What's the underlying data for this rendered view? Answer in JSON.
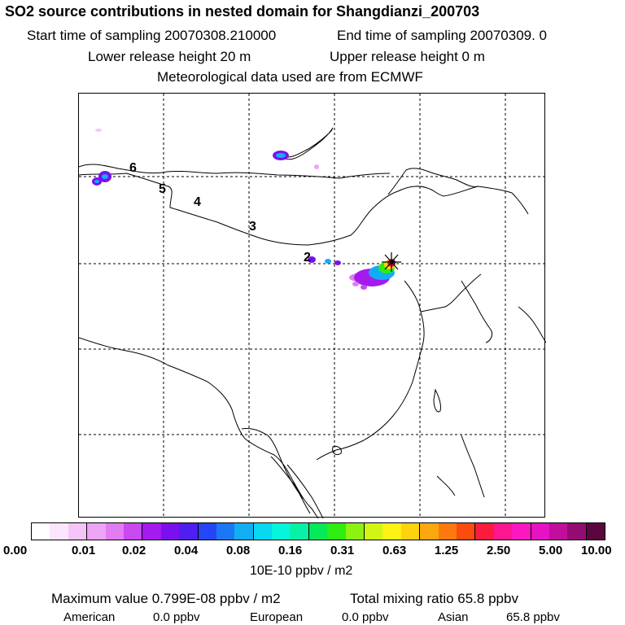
{
  "title": "SO2 source contributions in nested domain for Shangdianzi_200703",
  "line2_start": "Start time of sampling 20070308.210000",
  "line2_end": "End time of sampling 20070309.    0",
  "line3_lower": "Lower release height   20 m",
  "line3_upper": "Upper release height    0 m",
  "line4": "Meteorological data used are from ECMWF",
  "map": {
    "track_labels": [
      "6",
      "5",
      "4",
      "3",
      "2"
    ]
  },
  "colorbar": {
    "colors": [
      "#ffffff",
      "#fde6fd",
      "#f5c5f8",
      "#eea4f6",
      "#e27cf2",
      "#c849ef",
      "#a51aee",
      "#7a10ee",
      "#4f1ef0",
      "#2545f6",
      "#1a78f5",
      "#11aef4",
      "#08d8f0",
      "#07f5dc",
      "#07f2a6",
      "#06ea58",
      "#30ec10",
      "#8cf20f",
      "#d2f513",
      "#fdf212",
      "#fdd20f",
      "#fca70d",
      "#fb790d",
      "#fb4b0f",
      "#fb1c3d",
      "#fc1791",
      "#fb18c1",
      "#e613c2",
      "#c10e9c",
      "#950b74",
      "#5b063f"
    ],
    "tick_labels": [
      "0.00",
      "0.01",
      "0.02",
      "0.04",
      "0.08",
      "0.16",
      "0.31",
      "0.63",
      "1.25",
      "2.50",
      "5.00",
      "10.00"
    ],
    "unit": "10E-10 ppbv / m2"
  },
  "summary": {
    "max_value": "Maximum value  0.799E-08 ppbv / m2",
    "total": "Total mixing ratio     65.8 ppbv",
    "regions": [
      {
        "name": "American",
        "value": "0.0 ppbv"
      },
      {
        "name": "European",
        "value": "0.0 ppbv"
      },
      {
        "name": "Asian",
        "value": "65.8 ppbv"
      }
    ]
  }
}
